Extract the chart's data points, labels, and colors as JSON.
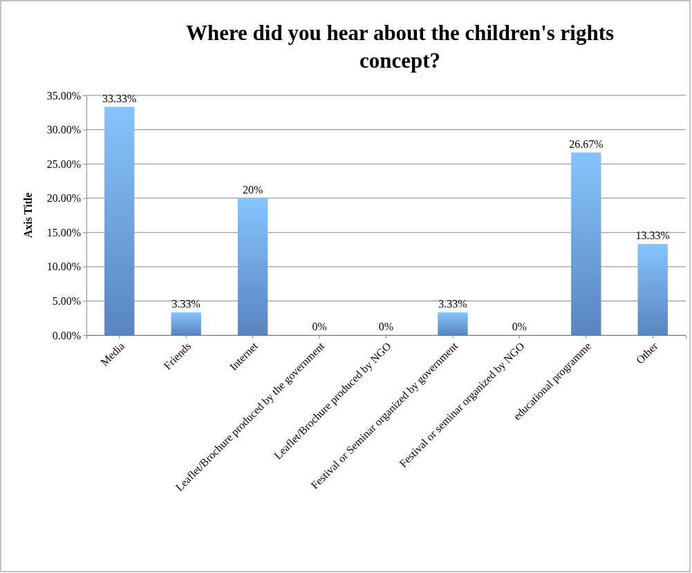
{
  "chart_data": {
    "type": "bar",
    "title": "Where did you hear about the children's rights concept?",
    "ylabel": "Axis Title",
    "categories": [
      "Media",
      "Friends",
      "Internet",
      "Leaflet/Brochure produced by the government",
      "Leaflet/Brochure produced by NGO",
      "Festival or Seminar organized by government",
      "Festival or seminar organized by NGO",
      "educational programme",
      "Other"
    ],
    "values": [
      33.33,
      3.33,
      20,
      0,
      0,
      3.33,
      0,
      26.67,
      13.33
    ],
    "value_labels": [
      "33.33%",
      "3.33%",
      "20%",
      "0%",
      "0%",
      "3.33%",
      "0%",
      "26.67%",
      "13.33%"
    ],
    "color": "#6c9ee6",
    "ylim": [
      0,
      35
    ],
    "yticks": [
      {
        "value": 0,
        "label": "0.00%"
      },
      {
        "value": 5,
        "label": "5.00%"
      },
      {
        "value": 10,
        "label": "10.00%"
      },
      {
        "value": 15,
        "label": "15.00%"
      },
      {
        "value": 20,
        "label": "20.00%"
      },
      {
        "value": 25,
        "label": "25.00%"
      },
      {
        "value": 30,
        "label": "30.00%"
      },
      {
        "value": 35,
        "label": "35.00%"
      }
    ],
    "grid": "y"
  }
}
